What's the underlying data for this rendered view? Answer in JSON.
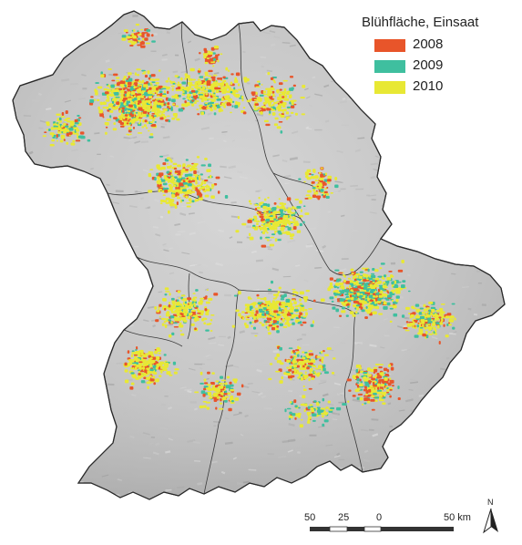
{
  "legend": {
    "title": "Blühfläche, Einsaat",
    "items": [
      {
        "label": "2008",
        "color": "#e8552a"
      },
      {
        "label": "2009",
        "color": "#3fbf9f"
      },
      {
        "label": "2010",
        "color": "#e8e834"
      }
    ]
  },
  "scale_bar": {
    "labels": [
      "50",
      "25",
      "0",
      "50 km"
    ]
  },
  "north_arrow": {
    "label": "N"
  },
  "colors": {
    "terrain": "#c8c8c8",
    "border": "#333333",
    "background": "#ffffff"
  }
}
